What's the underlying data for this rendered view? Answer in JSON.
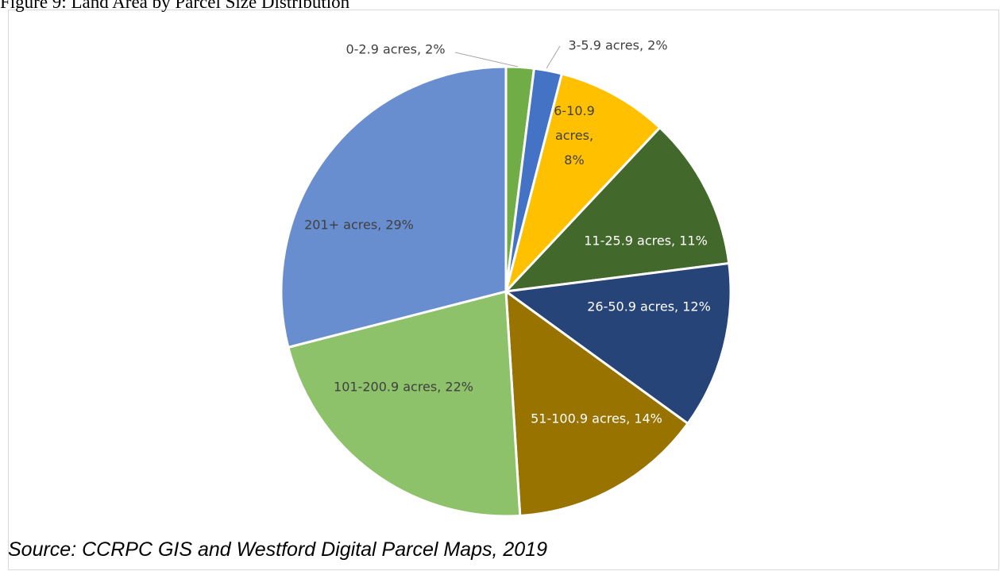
{
  "chart_data": {
    "type": "pie",
    "title": "Figure 9: Land Area by Parcel Size Distribution",
    "categories": [
      "0-2.9 acres",
      "3-5.9 acres",
      "6-10.9 acres",
      "11-25.9 acres",
      "26-50.9 acres",
      "51-100.9 acres",
      "101-200.9 acres",
      "201+ acres"
    ],
    "values": [
      2,
      2,
      8,
      11,
      12,
      14,
      22,
      29
    ],
    "value_labels": [
      "0-2.9 acres, 2%",
      "3-5.9 acres, 2%",
      "6-10.9 acres, 8%",
      "11-25.9 acres, 11%",
      "26-50.9 acres, 12%",
      "51-100.9 acres, 14%",
      "101-200.9 acres, 22%",
      "201+ acres, 29%"
    ],
    "colors": [
      "#70ad47",
      "#4472c4",
      "#ffc000",
      "#43682b",
      "#264478",
      "#997300",
      "#8dc16a",
      "#698ed0"
    ],
    "source": "Source: CCRPC GIS and Westford Digital Parcel Maps, 2019"
  }
}
